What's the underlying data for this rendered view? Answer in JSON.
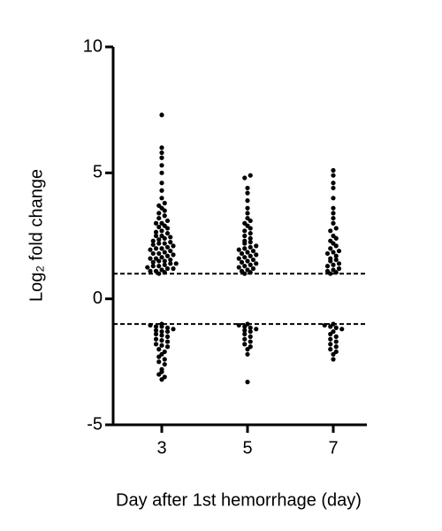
{
  "chart_data": {
    "type": "scatter",
    "x_label": "Day after 1st hemorrhage (day)",
    "y_label": "Log₂ fold change",
    "categories": [
      "3",
      "5",
      "7"
    ],
    "values": [
      [
        1.0,
        1.05,
        1.1,
        1.1,
        1.15,
        1.2,
        1.2,
        1.25,
        1.3,
        1.3,
        1.35,
        1.4,
        1.4,
        1.45,
        1.5,
        1.5,
        1.55,
        1.6,
        1.6,
        1.65,
        1.7,
        1.75,
        1.8,
        1.8,
        1.85,
        1.9,
        1.95,
        2.0,
        2.0,
        2.05,
        2.1,
        2.15,
        2.2,
        2.2,
        2.25,
        2.3,
        2.35,
        2.4,
        2.45,
        2.5,
        2.5,
        2.6,
        2.65,
        2.7,
        2.8,
        2.85,
        2.9,
        3.0,
        3.0,
        3.1,
        3.2,
        3.3,
        3.4,
        3.5,
        3.6,
        3.7,
        3.8,
        4.0,
        4.3,
        4.6,
        5.0,
        5.3,
        5.6,
        5.8,
        6.0,
        7.3,
        -1.0,
        -1.05,
        -1.1,
        -1.1,
        -1.15,
        -1.2,
        -1.25,
        -1.3,
        -1.3,
        -1.4,
        -1.45,
        -1.5,
        -1.6,
        -1.65,
        -1.7,
        -1.8,
        -1.85,
        -1.9,
        -2.0,
        -2.1,
        -2.2,
        -2.3,
        -2.4,
        -2.5,
        -2.6,
        -2.8,
        -2.9,
        -3.0,
        -3.1,
        -3.2
      ],
      [
        1.0,
        1.05,
        1.1,
        1.15,
        1.2,
        1.25,
        1.3,
        1.35,
        1.4,
        1.45,
        1.5,
        1.55,
        1.6,
        1.65,
        1.7,
        1.75,
        1.8,
        1.85,
        1.9,
        1.95,
        2.0,
        2.05,
        2.1,
        2.2,
        2.25,
        2.3,
        2.4,
        2.5,
        2.6,
        2.7,
        2.8,
        2.9,
        3.0,
        3.1,
        3.2,
        3.4,
        3.6,
        3.9,
        4.2,
        4.4,
        4.8,
        4.9,
        -1.0,
        -1.05,
        -1.1,
        -1.15,
        -1.2,
        -1.25,
        -1.3,
        -1.4,
        -1.5,
        -1.6,
        -1.7,
        -1.8,
        -1.9,
        -2.0,
        -2.2,
        -3.3
      ],
      [
        1.0,
        1.05,
        1.1,
        1.15,
        1.2,
        1.3,
        1.35,
        1.4,
        1.5,
        1.55,
        1.6,
        1.7,
        1.8,
        1.85,
        1.9,
        2.0,
        2.1,
        2.2,
        2.3,
        2.4,
        2.5,
        2.7,
        2.8,
        3.0,
        3.2,
        3.4,
        3.6,
        4.0,
        4.4,
        4.6,
        4.9,
        5.1,
        -1.0,
        -1.05,
        -1.1,
        -1.15,
        -1.2,
        -1.3,
        -1.4,
        -1.5,
        -1.6,
        -1.7,
        -1.8,
        -1.9,
        -2.0,
        -2.1,
        -2.2,
        -2.4
      ]
    ],
    "color": "#000000",
    "ylim": [
      -5,
      10
    ],
    "yticks": [
      -5,
      0,
      5,
      10
    ],
    "reference_lines": [
      1,
      -1
    ]
  }
}
